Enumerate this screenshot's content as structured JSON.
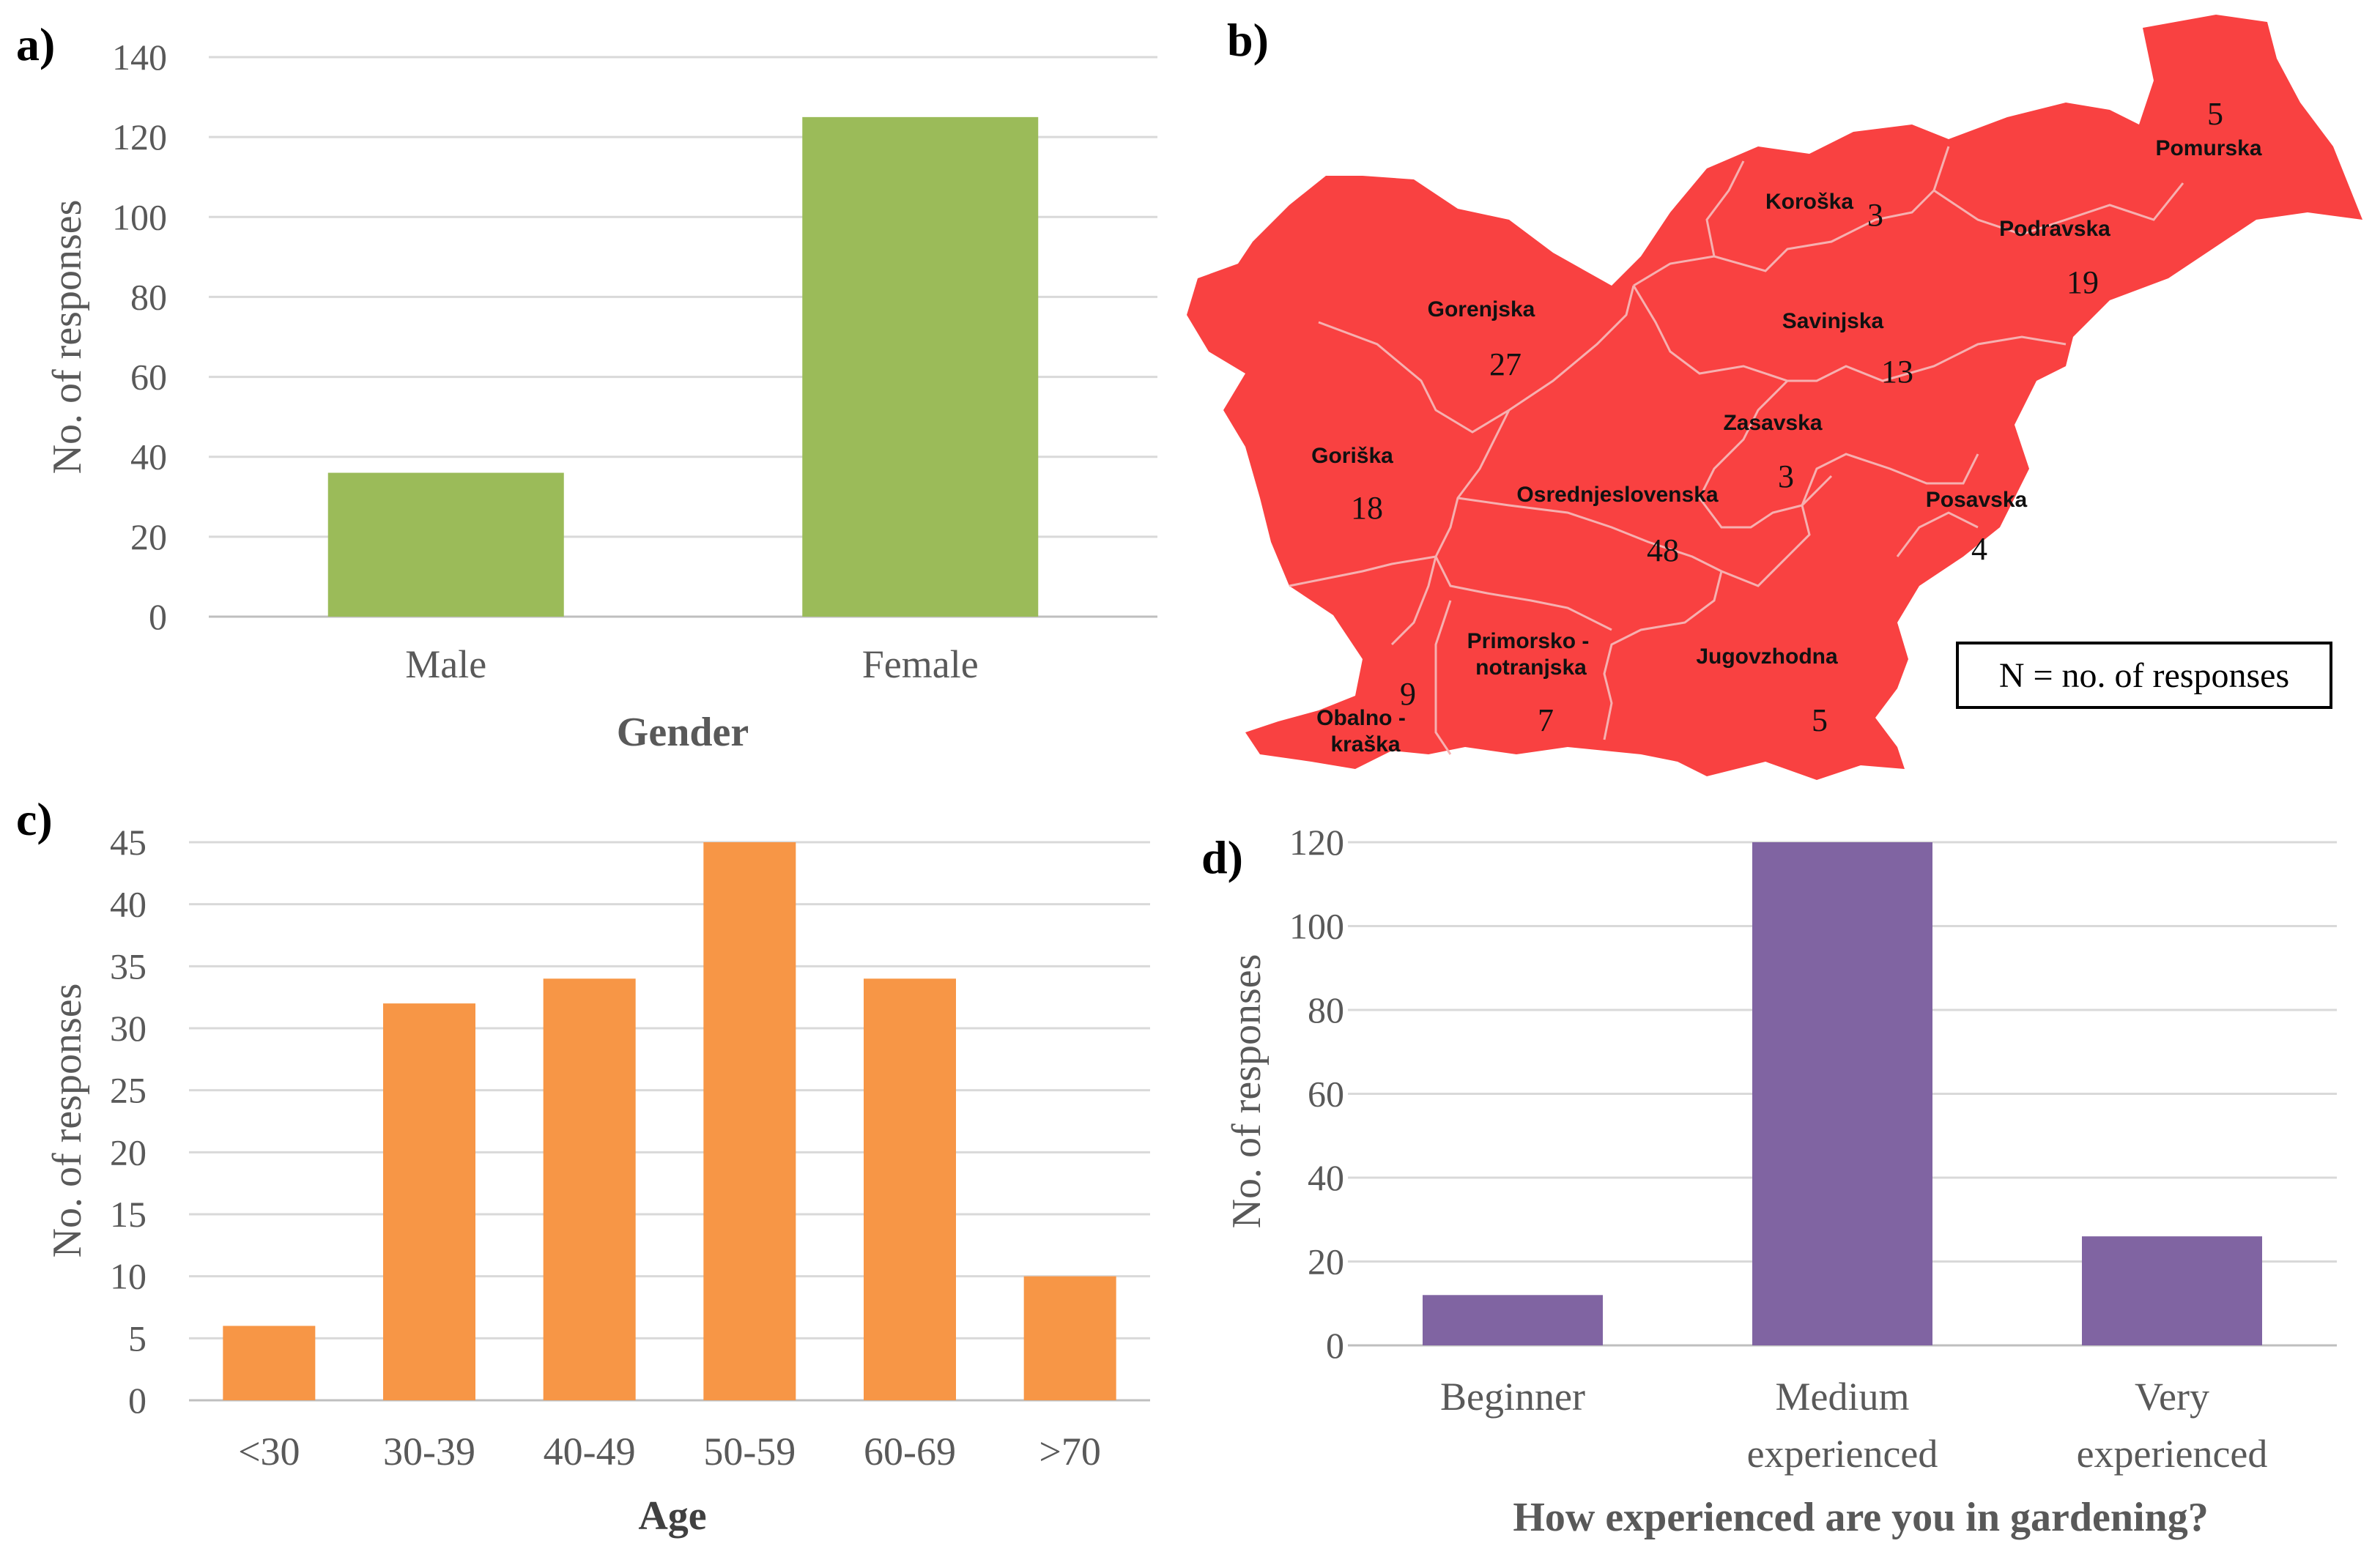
{
  "colors": {
    "green": "#9bbb59",
    "orange": "#f79646",
    "purple": "#8064a2",
    "map_red": "#f94141"
  },
  "panels": {
    "a": "a)",
    "b": "b)",
    "c": "c)",
    "d": "d)"
  },
  "chart_data": [
    {
      "id": "a",
      "type": "bar",
      "title": "",
      "categories": [
        "Male",
        "Female"
      ],
      "values": [
        36,
        125
      ],
      "xlabel": "Gender",
      "ylabel": "No. of responses",
      "ylim": [
        0,
        140
      ],
      "yticks": [
        "0",
        "20",
        "40",
        "60",
        "80",
        "100",
        "120",
        "140"
      ],
      "grid": true
    },
    {
      "id": "c",
      "type": "bar",
      "title": "",
      "categories": [
        "<30",
        "30-39",
        "40-49",
        "50-59",
        "60-69",
        ">70"
      ],
      "values": [
        6,
        32,
        34,
        45,
        34,
        10
      ],
      "xlabel": "Age",
      "ylabel": "No. of responses",
      "ylim": [
        0,
        45
      ],
      "yticks": [
        "0",
        "5",
        "10",
        "15",
        "20",
        "25",
        "30",
        "35",
        "40",
        "45"
      ],
      "grid": true
    },
    {
      "id": "d",
      "type": "bar",
      "title": "",
      "categories": [
        [
          "Beginner"
        ],
        [
          "Medium",
          "experienced"
        ],
        [
          "Very",
          "experienced"
        ]
      ],
      "values": [
        12,
        120,
        26
      ],
      "xlabel": "How experienced are you in gardening?",
      "ylabel": "No. of responses",
      "ylim": [
        0,
        120
      ],
      "yticks": [
        "0",
        "20",
        "40",
        "60",
        "80",
        "100",
        "120"
      ],
      "grid": true
    }
  ],
  "map": {
    "legend": "N = no. of responses",
    "regions": [
      {
        "name": "Pomurska",
        "count": "5"
      },
      {
        "name": "Koroška",
        "count": "3"
      },
      {
        "name": "Podravska",
        "count": "19"
      },
      {
        "name": "Gorenjska",
        "count": "27"
      },
      {
        "name": "Savinjska",
        "count": "13"
      },
      {
        "name": "Zasavska",
        "count": "3"
      },
      {
        "name": "Goriška",
        "count": "18"
      },
      {
        "name": "Osrednjeslovenska",
        "count": "48"
      },
      {
        "name": "Posavska",
        "count": "4"
      },
      {
        "name": "Primorsko -",
        "name2": "notranjska",
        "count": "7"
      },
      {
        "name": "Jugovzhodna",
        "count": "5"
      },
      {
        "name": "Obalno -",
        "name2": "kraška",
        "count": "9"
      }
    ]
  }
}
